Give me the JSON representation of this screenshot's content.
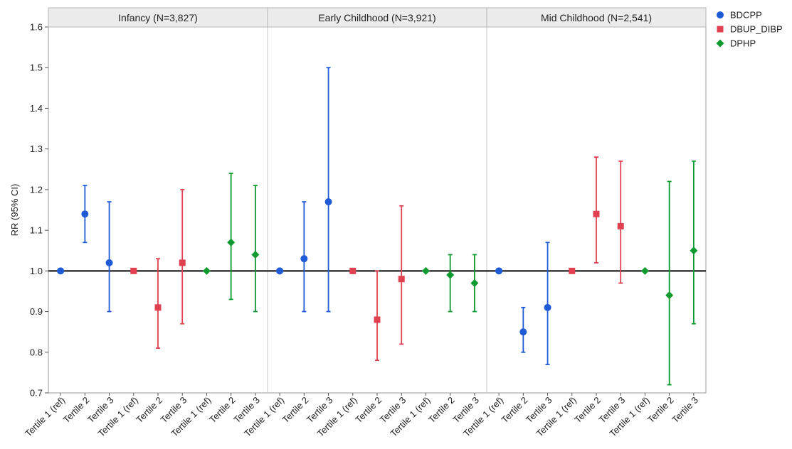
{
  "chart_data": {
    "type": "scatter",
    "subtype": "point-with-error-bars",
    "ylabel": "RR (95% CI)",
    "ylim": [
      0.7,
      1.6
    ],
    "yticks": [
      "0.7",
      "0.8",
      "0.9",
      "1.0",
      "1.1",
      "1.2",
      "1.3",
      "1.4",
      "1.5",
      "1.6"
    ],
    "reference_line": 1.0,
    "grid": false,
    "legend_position": "right",
    "colors": {
      "BDCPP": "#1f5bd6",
      "DBUP_DIBP": "#e0404f",
      "DPHP": "#0f9a2f"
    },
    "series_names": [
      "BDCPP",
      "DBUP_DIBP",
      "DPHP"
    ],
    "x_labels": [
      "Tertile 1 (ref)",
      "Tertile 2",
      "Tertile 3",
      "Tertile 1 (ref)",
      "Tertile 2",
      "Tertile 3",
      "Tertile 1 (ref)",
      "Tertile 2",
      "Tertile 3"
    ],
    "panels": [
      {
        "title": "Infancy (N=3,827)",
        "points": [
          {
            "series": "BDCPP",
            "x": "Tertile 1 (ref)",
            "rr": 1.0
          },
          {
            "series": "BDCPP",
            "x": "Tertile 2",
            "rr": 1.14,
            "lo": 1.07,
            "hi": 1.21
          },
          {
            "series": "BDCPP",
            "x": "Tertile 3",
            "rr": 1.02,
            "lo": 0.9,
            "hi": 1.17
          },
          {
            "series": "DBUP_DIBP",
            "x": "Tertile 1 (ref)",
            "rr": 1.0
          },
          {
            "series": "DBUP_DIBP",
            "x": "Tertile 2",
            "rr": 0.91,
            "lo": 0.81,
            "hi": 1.03
          },
          {
            "series": "DBUP_DIBP",
            "x": "Tertile 3",
            "rr": 1.02,
            "lo": 0.87,
            "hi": 1.2
          },
          {
            "series": "DPHP",
            "x": "Tertile 1 (ref)",
            "rr": 1.0
          },
          {
            "series": "DPHP",
            "x": "Tertile 2",
            "rr": 1.07,
            "lo": 0.93,
            "hi": 1.24
          },
          {
            "series": "DPHP",
            "x": "Tertile 3",
            "rr": 1.04,
            "lo": 0.9,
            "hi": 1.21
          }
        ]
      },
      {
        "title": "Early Childhood (N=3,921)",
        "points": [
          {
            "series": "BDCPP",
            "x": "Tertile 1 (ref)",
            "rr": 1.0
          },
          {
            "series": "BDCPP",
            "x": "Tertile 2",
            "rr": 1.03,
            "lo": 0.9,
            "hi": 1.17
          },
          {
            "series": "BDCPP",
            "x": "Tertile 3",
            "rr": 1.17,
            "lo": 0.9,
            "hi": 1.5
          },
          {
            "series": "DBUP_DIBP",
            "x": "Tertile 1 (ref)",
            "rr": 1.0
          },
          {
            "series": "DBUP_DIBP",
            "x": "Tertile 2",
            "rr": 0.88,
            "lo": 0.78,
            "hi": 1.0
          },
          {
            "series": "DBUP_DIBP",
            "x": "Tertile 3",
            "rr": 0.98,
            "lo": 0.82,
            "hi": 1.16
          },
          {
            "series": "DPHP",
            "x": "Tertile 1 (ref)",
            "rr": 1.0
          },
          {
            "series": "DPHP",
            "x": "Tertile 2",
            "rr": 0.99,
            "lo": 0.9,
            "hi": 1.04
          },
          {
            "series": "DPHP",
            "x": "Tertile 3",
            "rr": 0.97,
            "lo": 0.9,
            "hi": 1.04
          }
        ]
      },
      {
        "title": "Mid Childhood (N=2,541)",
        "points": [
          {
            "series": "BDCPP",
            "x": "Tertile 1 (ref)",
            "rr": 1.0
          },
          {
            "series": "BDCPP",
            "x": "Tertile 2",
            "rr": 0.85,
            "lo": 0.8,
            "hi": 0.91
          },
          {
            "series": "BDCPP",
            "x": "Tertile 3",
            "rr": 0.91,
            "lo": 0.77,
            "hi": 1.07
          },
          {
            "series": "DBUP_DIBP",
            "x": "Tertile 1 (ref)",
            "rr": 1.0
          },
          {
            "series": "DBUP_DIBP",
            "x": "Tertile 2",
            "rr": 1.14,
            "lo": 1.02,
            "hi": 1.28
          },
          {
            "series": "DBUP_DIBP",
            "x": "Tertile 3",
            "rr": 1.11,
            "lo": 0.97,
            "hi": 1.27
          },
          {
            "series": "DPHP",
            "x": "Tertile 1 (ref)",
            "rr": 1.0
          },
          {
            "series": "DPHP",
            "x": "Tertile 2",
            "rr": 0.94,
            "lo": 0.72,
            "hi": 1.22
          },
          {
            "series": "DPHP",
            "x": "Tertile 3",
            "rr": 1.05,
            "lo": 0.87,
            "hi": 1.27
          }
        ]
      }
    ]
  }
}
